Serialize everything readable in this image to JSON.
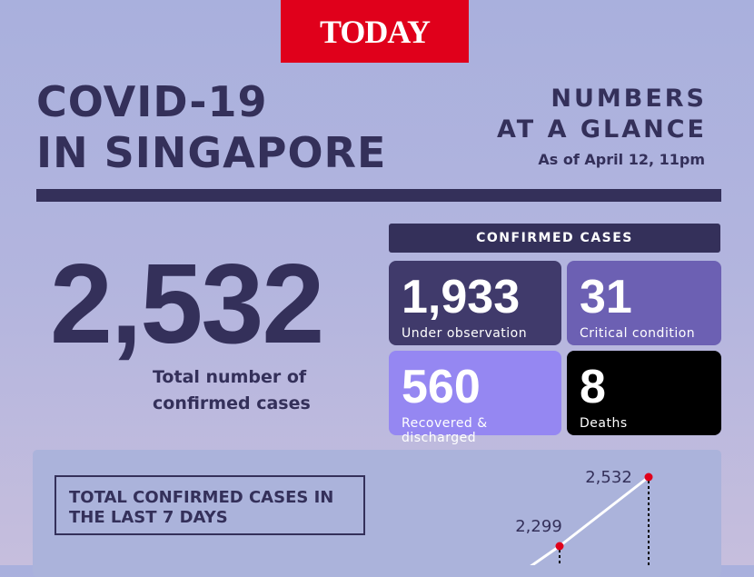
{
  "logo": "TODAY",
  "title": [
    "COVID-19",
    "IN SINGAPORE"
  ],
  "glance": [
    "NUMBERS",
    "AT A GLANCE"
  ],
  "as_of": "As of April 12, 11pm",
  "total": {
    "value": "2,532",
    "label": [
      "Total number of",
      "confirmed cases"
    ]
  },
  "confirmed_header": "CONFIRMED CASES",
  "cards": [
    {
      "value": "1,933",
      "label": "Under observation",
      "color": "#403a6b"
    },
    {
      "value": "31",
      "label": "Critical condition",
      "color": "#6c60b3"
    },
    {
      "value": "560",
      "label": "Recovered & discharged",
      "color": "#9587f2"
    },
    {
      "value": "8",
      "label": "Deaths",
      "color": "#000000"
    }
  ],
  "chart_data": {
    "type": "line",
    "title": "TOTAL CONFIRMED CASES IN THE LAST 7 DAYS",
    "visible_points": [
      {
        "label": "2,299",
        "value": 2299
      },
      {
        "label": "2,532",
        "value": 2532
      }
    ],
    "line_color": "#ffffff",
    "marker_color": "#e0001b"
  }
}
